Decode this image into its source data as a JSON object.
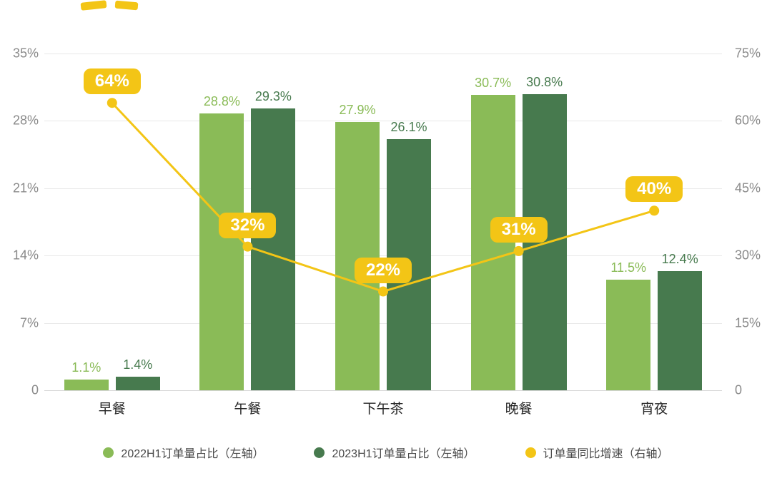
{
  "chart_data": {
    "type": "bar+line",
    "title": "",
    "categories": [
      "早餐",
      "午餐",
      "下午茶",
      "晚餐",
      "宵夜"
    ],
    "series": [
      {
        "name": "2022H1订单量占比（左轴）",
        "type": "bar",
        "axis": "left",
        "color": "#8ABB57",
        "values": [
          1.1,
          28.8,
          27.9,
          30.7,
          11.5
        ],
        "labels": [
          "1.1%",
          "28.8%",
          "27.9%",
          "30.7%",
          "11.5%"
        ]
      },
      {
        "name": "2023H1订单量占比（左轴）",
        "type": "bar",
        "axis": "left",
        "color": "#477A4E",
        "values": [
          1.4,
          29.3,
          26.1,
          30.8,
          12.4
        ],
        "labels": [
          "1.4%",
          "29.3%",
          "26.1%",
          "30.8%",
          "12.4%"
        ]
      },
      {
        "name": "订单量同比增速（右轴）",
        "type": "line",
        "axis": "right",
        "color": "#F3C516",
        "values": [
          64,
          32,
          22,
          31,
          40
        ],
        "labels": [
          "64%",
          "32%",
          "22%",
          "31%",
          "40%"
        ]
      }
    ],
    "left_axis": {
      "ticks": [
        "35%",
        "28%",
        "21%",
        "14%",
        "7%",
        "0"
      ],
      "max": 35,
      "min": 0
    },
    "right_axis": {
      "ticks": [
        "75%",
        "60%",
        "45%",
        "30%",
        "15%",
        "0"
      ],
      "max": 75,
      "min": 0
    },
    "grid": true,
    "legend_position": "bottom",
    "colors": {
      "bar_2022": "#8ABB57",
      "bar_2023": "#477A4E",
      "line_growth": "#F3C516",
      "grid": "#E8E8E8",
      "tick_text": "#8A8A8A",
      "category_text": "#262626",
      "legend_text": "#4A4A4A",
      "pill_text": "#FFFFFF"
    }
  }
}
